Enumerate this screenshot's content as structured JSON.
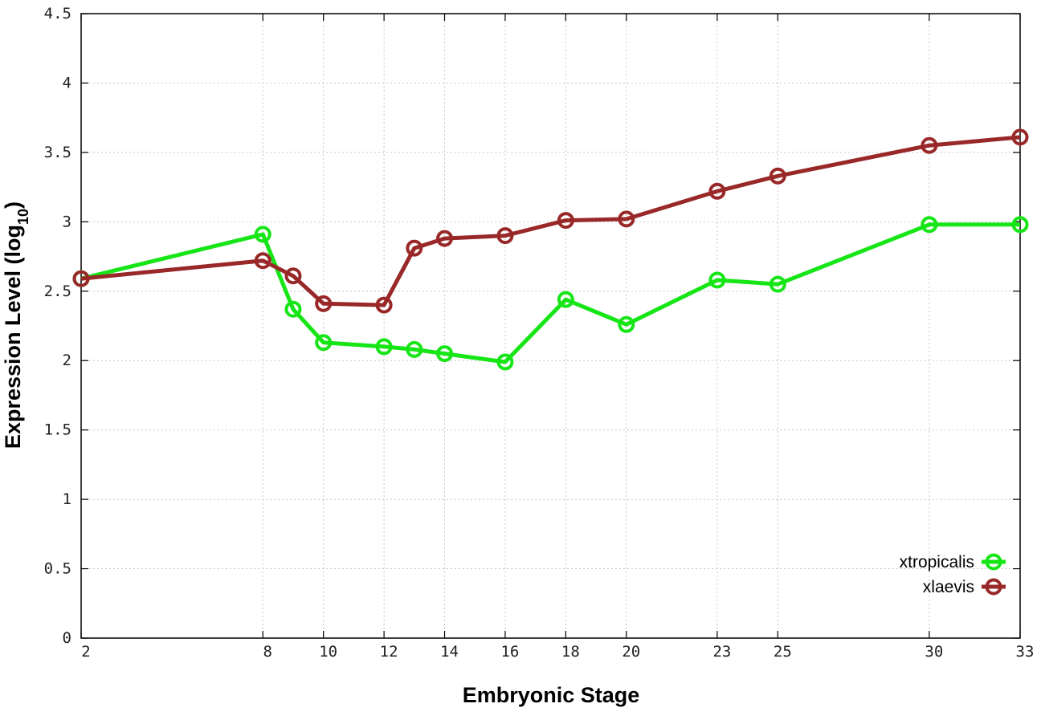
{
  "chart_data": {
    "type": "line",
    "title": "",
    "xlabel": "Embryonic Stage",
    "ylabel_main": "Expression Level (log",
    "ylabel_sub": "10",
    "ylabel_end": ")",
    "x": [
      2,
      8,
      9,
      10,
      12,
      13,
      14,
      16,
      18,
      20,
      23,
      25,
      30,
      33
    ],
    "x_tick_labels": [
      "2",
      "8",
      "10",
      "12",
      "14",
      "16",
      "18",
      "20",
      "23",
      "25",
      "30",
      "33"
    ],
    "x_tick_values": [
      2,
      8,
      10,
      12,
      14,
      16,
      18,
      20,
      23,
      25,
      30,
      33
    ],
    "y_tick_labels": [
      "0",
      "0.5",
      "1",
      "1.5",
      "2",
      "2.5",
      "3",
      "3.5",
      "4",
      "4.5"
    ],
    "y_tick_values": [
      0,
      0.5,
      1,
      1.5,
      2,
      2.5,
      3,
      3.5,
      4,
      4.5
    ],
    "xlim": [
      2,
      33
    ],
    "ylim": [
      0,
      4.5
    ],
    "grid": true,
    "legend_position": "bottom-right",
    "series": [
      {
        "name": "xtropicalis",
        "color": "#16e516",
        "values": [
          2.59,
          2.91,
          2.37,
          2.13,
          2.1,
          2.08,
          2.05,
          1.99,
          2.44,
          2.26,
          2.58,
          2.55,
          2.98,
          2.98
        ]
      },
      {
        "name": "xlaevis",
        "color": "#992828",
        "values": [
          2.59,
          2.72,
          2.61,
          2.41,
          2.4,
          2.81,
          2.88,
          2.9,
          3.01,
          3.02,
          3.22,
          3.33,
          3.55,
          3.61
        ]
      }
    ]
  }
}
